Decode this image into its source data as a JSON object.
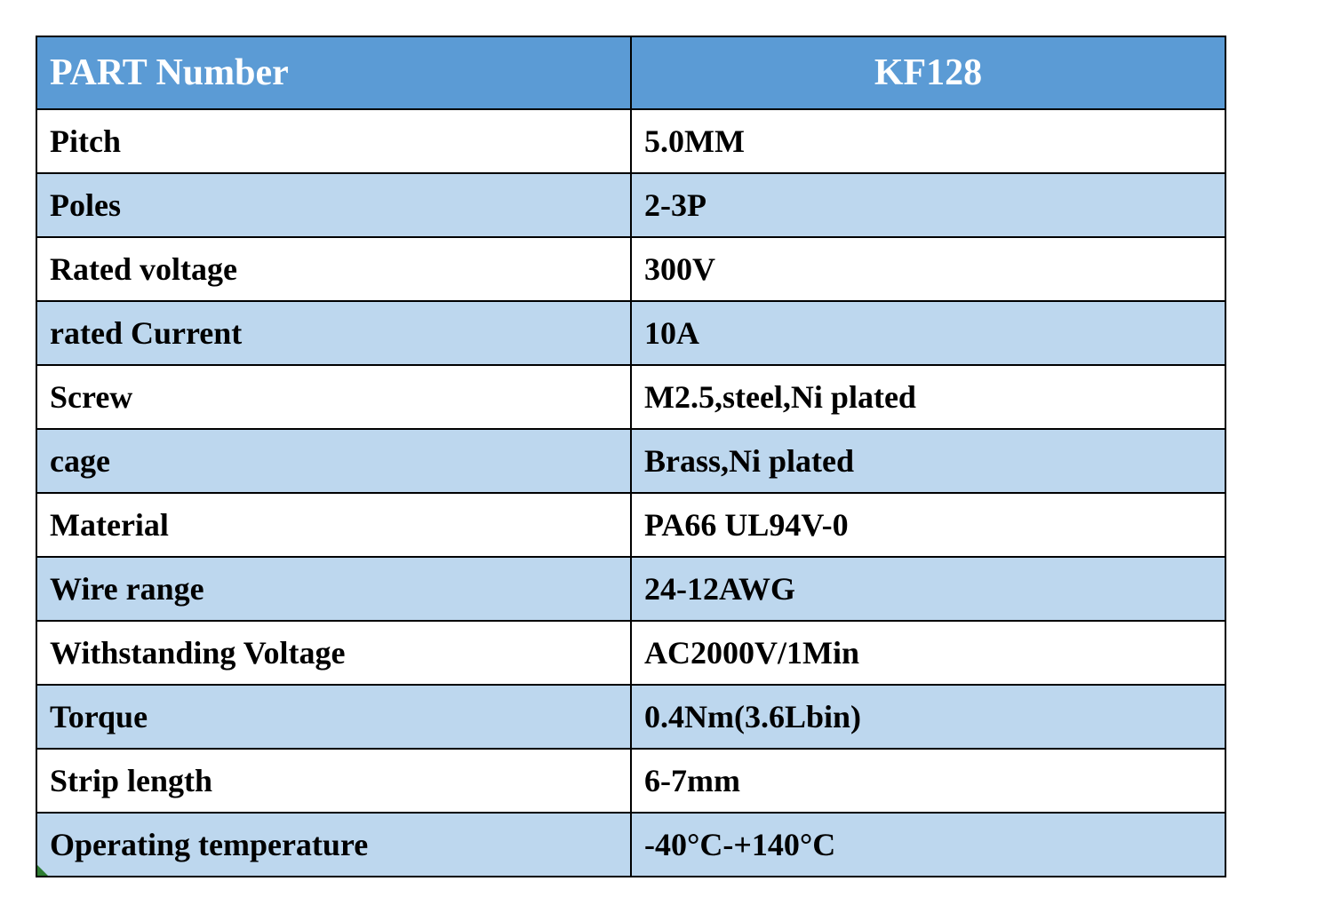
{
  "table": {
    "type": "table",
    "header_bg": "#5b9bd5",
    "header_text_color": "#ffffff",
    "row_odd_bg": "#ffffff",
    "row_even_bg": "#bdd7ee",
    "border_color": "#000000",
    "border_width": 2,
    "font_family": "Georgia, Times New Roman, serif",
    "header_fontsize": 42,
    "body_fontsize": 36,
    "body_fontweight": "bold",
    "col_left_width_pct": 46,
    "col_right_width_pct": 54,
    "corner_marker_color": "#2e7d32",
    "columns": [
      {
        "label": "PART Number",
        "align": "left"
      },
      {
        "label": "KF128",
        "align": "center"
      }
    ],
    "rows": [
      {
        "label": "Pitch",
        "value": "5.0MM"
      },
      {
        "label": "Poles",
        "value": "2-3P"
      },
      {
        "label": "Rated voltage",
        "value": "300V"
      },
      {
        "label": "rated Current",
        "value": "10A"
      },
      {
        "label": "Screw",
        "value": "M2.5,steel,Ni plated"
      },
      {
        "label": "cage",
        "value": "Brass,Ni plated"
      },
      {
        "label": "Material",
        "value": "PA66   UL94V-0"
      },
      {
        "label": "Wire range",
        "value": "24-12AWG"
      },
      {
        "label": "Withstanding Voltage",
        "value": "AC2000V/1Min"
      },
      {
        "label": "Torque",
        "value": "0.4Nm(3.6Lbin)"
      },
      {
        "label": "Strip length",
        "value": "6-7mm"
      },
      {
        "label": "Operating temperature",
        "value": "-40°C-+140°C"
      }
    ]
  }
}
